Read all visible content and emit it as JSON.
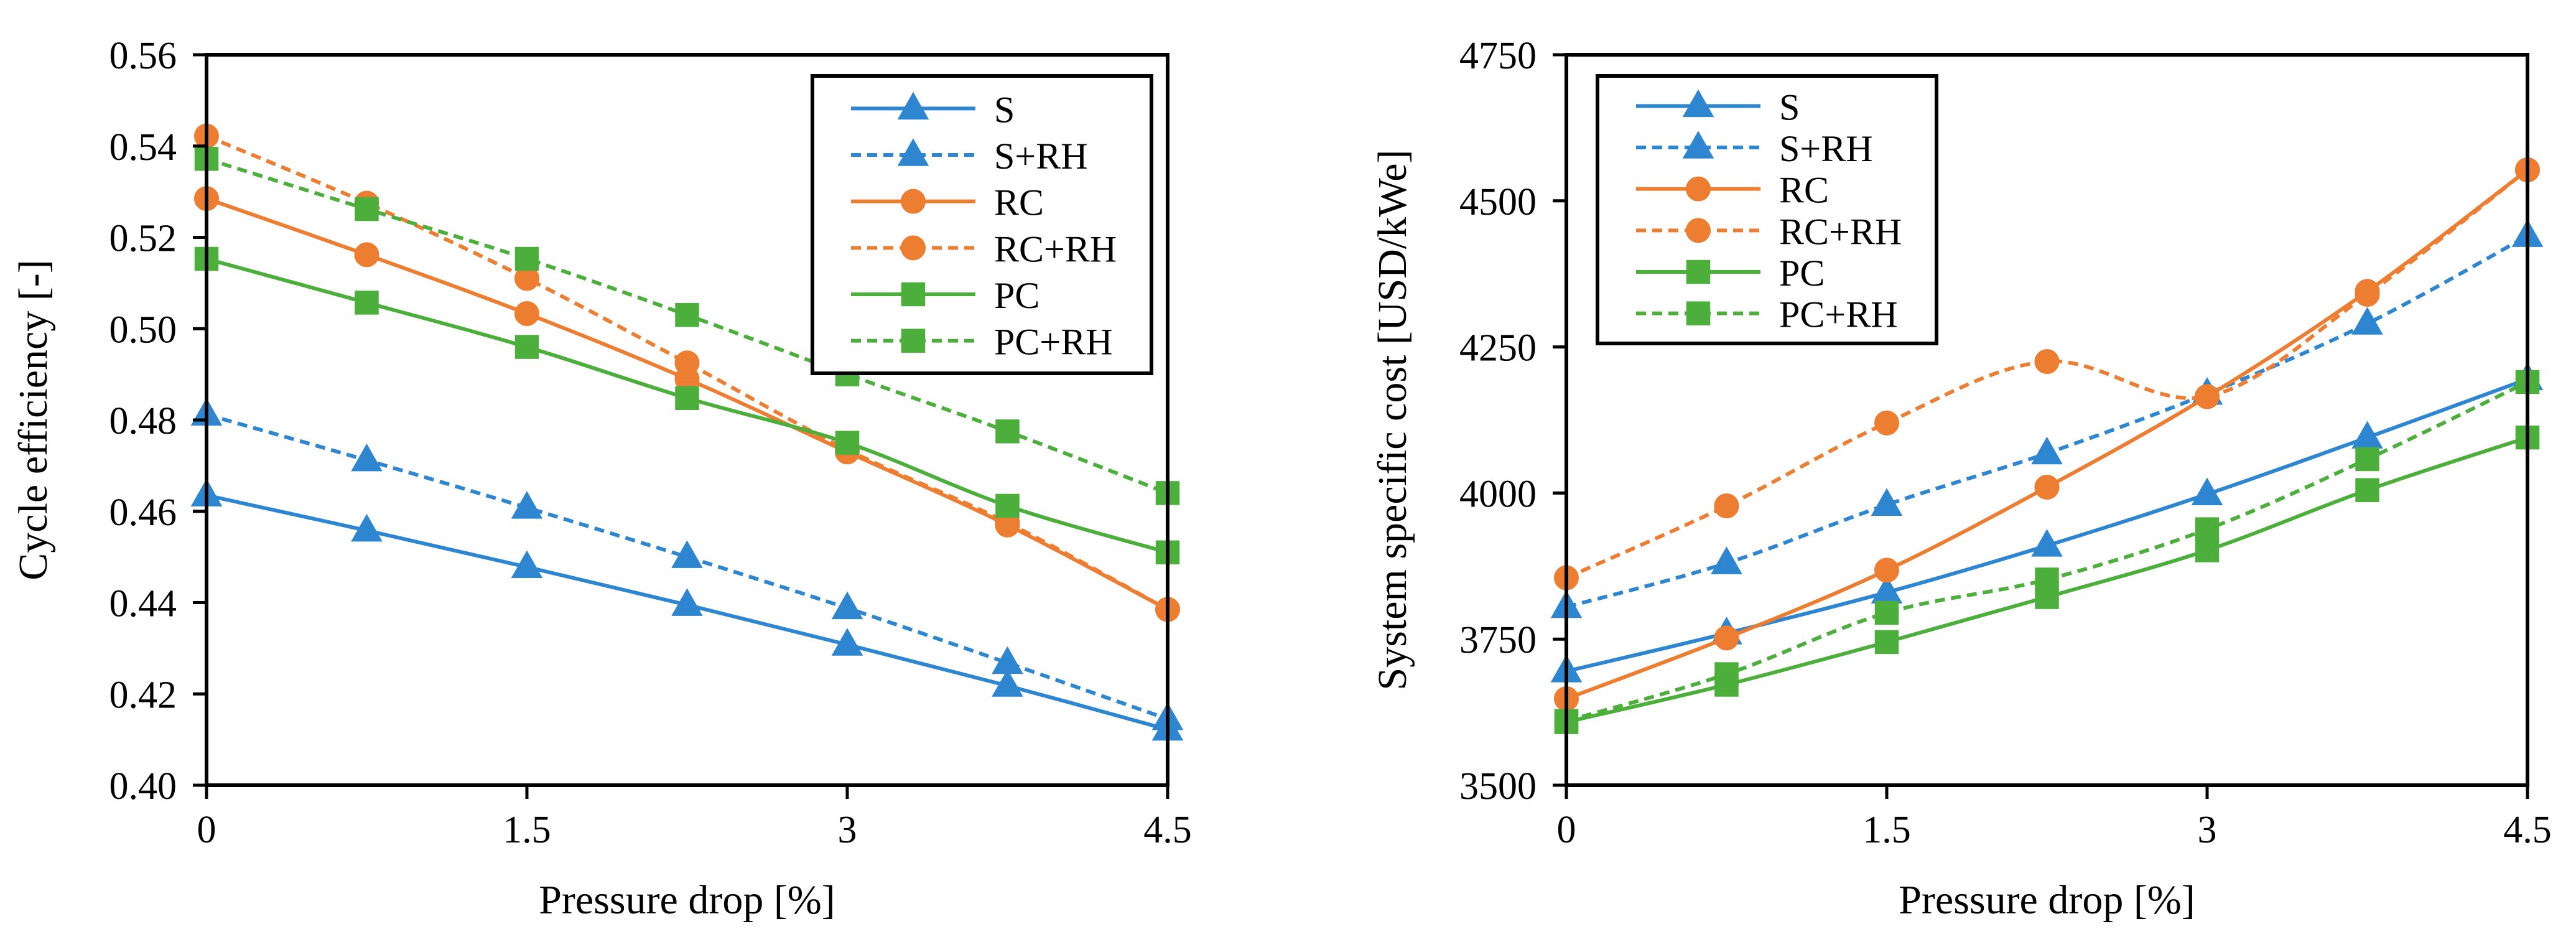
{
  "chart_data": [
    {
      "type": "line",
      "title": "",
      "xlabel": "Pressure drop [%]",
      "ylabel": "Cycle efficiency [-]",
      "xlim": [
        0,
        4.5
      ],
      "ylim": [
        0.4,
        0.56
      ],
      "xticks": [
        0,
        1.5,
        3,
        4.5
      ],
      "xtick_labels": [
        "0",
        "1.5",
        "3",
        "4.5"
      ],
      "yticks": [
        0.4,
        0.42,
        0.44,
        0.46,
        0.48,
        0.5,
        0.52,
        0.54,
        0.56
      ],
      "ytick_labels": [
        "0.40",
        "0.42",
        "0.44",
        "0.46",
        "0.48",
        "0.50",
        "0.52",
        "0.54",
        "0.56"
      ],
      "legend": "top-right",
      "x": [
        0,
        0.75,
        1.5,
        2.25,
        3,
        3.75,
        4.5
      ],
      "series": [
        {
          "name": "S",
          "color": "#2e86d1",
          "dash": "solid",
          "marker": "triangle",
          "values": [
            0.4635,
            0.4558,
            0.4478,
            0.4395,
            0.4308,
            0.4218,
            0.4122
          ]
        },
        {
          "name": "S+RH",
          "color": "#2e86d1",
          "dash": "dashed",
          "marker": "triangle",
          "values": [
            0.4812,
            0.4712,
            0.4608,
            0.45,
            0.4388,
            0.4268,
            0.4145
          ]
        },
        {
          "name": "RC",
          "color": "#ed7d31",
          "dash": "solid",
          "marker": "circle",
          "values": [
            0.5285,
            0.5162,
            0.5033,
            0.489,
            0.473,
            0.457,
            0.4385
          ]
        },
        {
          "name": "RC+RH",
          "color": "#ed7d31",
          "dash": "dashed",
          "marker": "circle",
          "values": [
            0.5422,
            0.5275,
            0.511,
            0.4925,
            0.4735,
            0.4575,
            0.4385
          ]
        },
        {
          "name": "PC",
          "color": "#4caf3c",
          "dash": "solid",
          "marker": "square",
          "values": [
            0.5153,
            0.5057,
            0.496,
            0.4848,
            0.475,
            0.4612,
            0.451
          ]
        },
        {
          "name": "PC+RH",
          "color": "#4caf3c",
          "dash": "dashed",
          "marker": "square",
          "values": [
            0.5372,
            0.5262,
            0.5153,
            0.503,
            0.49,
            0.4775,
            0.464
          ]
        }
      ]
    },
    {
      "type": "line",
      "title": "",
      "xlabel": "Pressure drop [%]",
      "ylabel": "System specific cost [USD/kWe]",
      "xlim": [
        0,
        4.5
      ],
      "ylim": [
        3500,
        4750
      ],
      "xticks": [
        0,
        1.5,
        3,
        4.5
      ],
      "xtick_labels": [
        "0",
        "1.5",
        "3",
        "4.5"
      ],
      "yticks": [
        3500,
        3750,
        4000,
        4250,
        4500,
        4750
      ],
      "ytick_labels": [
        "3500",
        "3750",
        "4000",
        "4250",
        "4500",
        "4750"
      ],
      "legend": "top-left",
      "x": [
        0,
        0.75,
        1.5,
        2.25,
        3,
        3.75,
        4.5
      ],
      "series": [
        {
          "name": "S",
          "color": "#2e86d1",
          "dash": "solid",
          "marker": "triangle",
          "values": [
            3695,
            3760,
            3830,
            3910,
            3998,
            4095,
            4195
          ]
        },
        {
          "name": "S+RH",
          "color": "#2e86d1",
          "dash": "dashed",
          "marker": "triangle",
          "values": [
            3805,
            3880,
            3980,
            4068,
            4170,
            4290,
            4440
          ]
        },
        {
          "name": "RC",
          "color": "#ed7d31",
          "dash": "solid",
          "marker": "circle",
          "values": [
            3648,
            3752,
            3868,
            4010,
            4165,
            4345,
            4553
          ]
        },
        {
          "name": "RC+RH",
          "color": "#ed7d31",
          "dash": "dashed",
          "marker": "circle",
          "values": [
            3855,
            3978,
            4120,
            4225,
            4165,
            4340,
            4553
          ]
        },
        {
          "name": "PC",
          "color": "#4caf3c",
          "dash": "solid",
          "marker": "square",
          "values": [
            3608,
            3672,
            3745,
            3822,
            3902,
            4005,
            4095
          ]
        },
        {
          "name": "PC+RH",
          "color": "#4caf3c",
          "dash": "dashed",
          "marker": "square",
          "values": [
            3610,
            3690,
            3795,
            3852,
            3938,
            4058,
            4190
          ]
        }
      ]
    }
  ]
}
